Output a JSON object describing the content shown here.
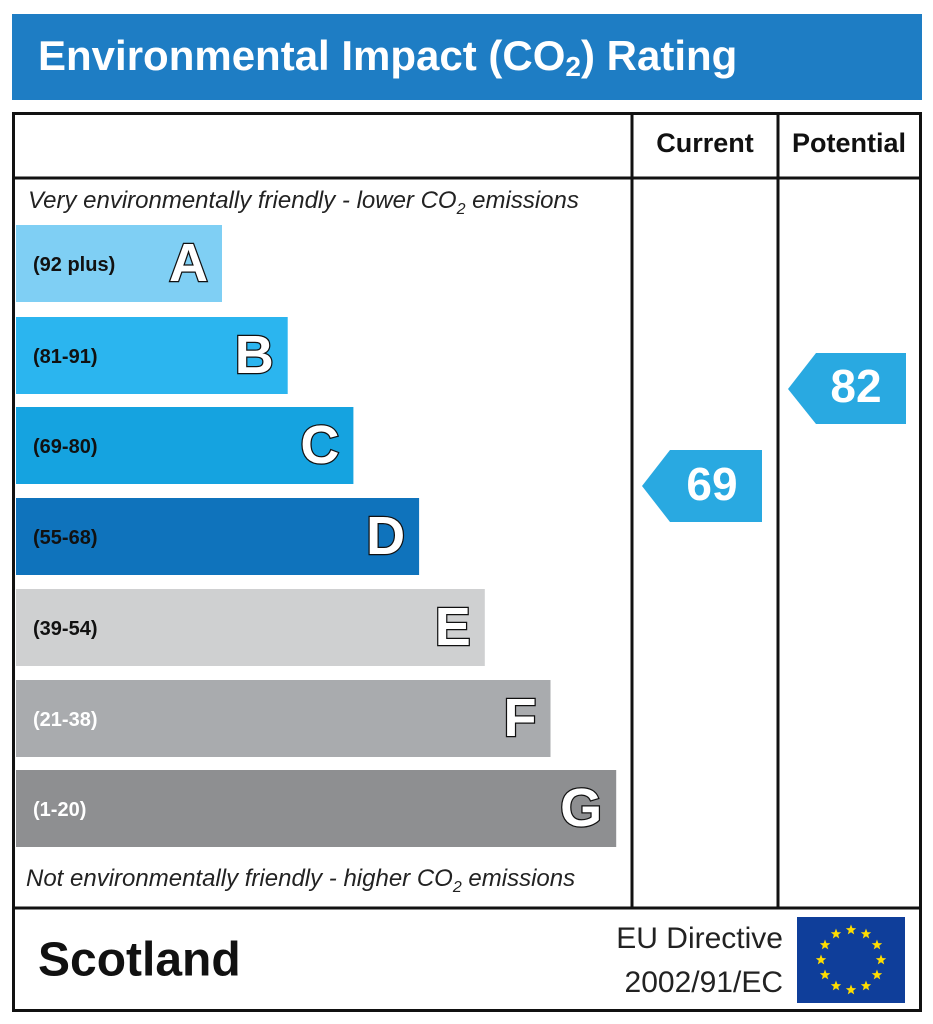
{
  "header": {
    "title": {
      "before": "Environmental Impact (CO",
      "sub": "2",
      "after": ") Rating"
    }
  },
  "columns": {
    "current": "Current",
    "potential": "Potential"
  },
  "top_note": {
    "before": "Very environmentally friendly - lower CO",
    "sub": "2",
    "after": " emissions"
  },
  "bottom_note": {
    "before": "Not environmentally friendly - higher CO",
    "sub": "2",
    "after": " emissions"
  },
  "bands": [
    {
      "range": "(92 plus)",
      "letter": "A",
      "color": "#7fcff4"
    },
    {
      "range": "(81-91)",
      "letter": "B",
      "color": "#2bb5ef"
    },
    {
      "range": "(69-80)",
      "letter": "C",
      "color": "#15a3e0"
    },
    {
      "range": "(55-68)",
      "letter": "D",
      "color": "#0f73bc"
    },
    {
      "range": "(39-54)",
      "letter": "E",
      "color": "#cfd0d1"
    },
    {
      "range": "(21-38)",
      "letter": "F",
      "color": "#a9abae"
    },
    {
      "range": "(1-20)",
      "letter": "G",
      "color": "#8e8f91"
    }
  ],
  "current": {
    "value": 69,
    "color": "#29a9e1"
  },
  "potential": {
    "value": 82,
    "color": "#29a9e1"
  },
  "footer": {
    "country": "Scotland",
    "directive": [
      "EU Directive",
      "2002/91/EC"
    ]
  }
}
